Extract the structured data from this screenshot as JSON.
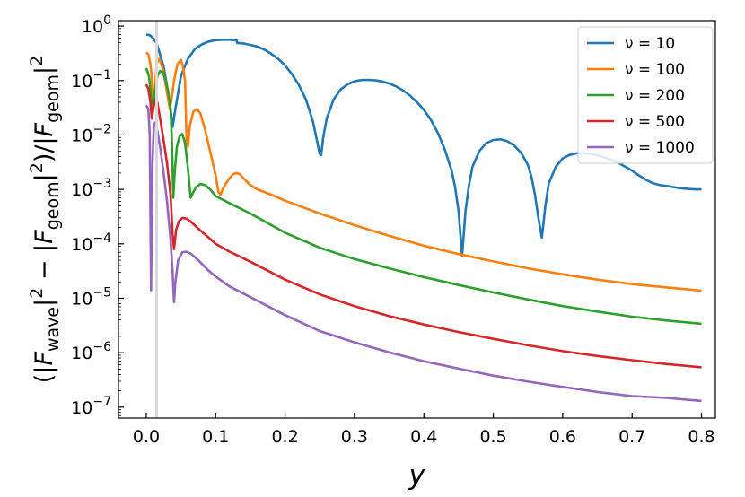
{
  "chart_data": {
    "type": "line",
    "xlabel": "y",
    "ylabel": "(|F_wave|^2 − |F_geom|^2)/|F_geom|^2",
    "xlim": [
      -0.04,
      0.82
    ],
    "ylim_log10": [
      -7.2,
      0.1
    ],
    "yscale": "log",
    "grid": false,
    "legend_position": "top-right",
    "vertical_marker_x": 0.015,
    "x_ticks": [
      "0.0",
      "0.1",
      "0.2",
      "0.3",
      "0.4",
      "0.5",
      "0.6",
      "0.7",
      "0.8"
    ],
    "x_tick_values": [
      0.0,
      0.1,
      0.2,
      0.3,
      0.4,
      0.5,
      0.6,
      0.7,
      0.8
    ],
    "y_ticks": [
      {
        "exp": -7,
        "base": "10",
        "sup": "−7"
      },
      {
        "exp": -6,
        "base": "10",
        "sup": "−6"
      },
      {
        "exp": -5,
        "base": "10",
        "sup": "−5"
      },
      {
        "exp": -4,
        "base": "10",
        "sup": "−4"
      },
      {
        "exp": -3,
        "base": "10",
        "sup": "−3"
      },
      {
        "exp": -2,
        "base": "10",
        "sup": "−2"
      },
      {
        "exp": -1,
        "base": "10",
        "sup": "−1"
      },
      {
        "exp": 0,
        "base": "10",
        "sup": "0"
      }
    ],
    "series": [
      {
        "name": "ν = 10",
        "nu": "10",
        "color": "#1f77b4",
        "points": [
          [
            0.0,
            0.7
          ],
          [
            0.005,
            0.68
          ],
          [
            0.01,
            0.6
          ],
          [
            0.015,
            0.48
          ],
          [
            0.02,
            0.3
          ],
          [
            0.025,
            0.18
          ],
          [
            0.03,
            0.08
          ],
          [
            0.035,
            0.03
          ],
          [
            0.038,
            0.014
          ],
          [
            0.042,
            0.03
          ],
          [
            0.05,
            0.12
          ],
          [
            0.06,
            0.25
          ],
          [
            0.07,
            0.38
          ],
          [
            0.08,
            0.46
          ],
          [
            0.09,
            0.52
          ],
          [
            0.1,
            0.55
          ],
          [
            0.11,
            0.56
          ],
          [
            0.12,
            0.56
          ],
          [
            0.13,
            0.55
          ],
          [
            0.131,
            0.49
          ],
          [
            0.14,
            0.48
          ],
          [
            0.15,
            0.45
          ],
          [
            0.16,
            0.42
          ],
          [
            0.17,
            0.37
          ],
          [
            0.18,
            0.31
          ],
          [
            0.19,
            0.25
          ],
          [
            0.2,
            0.19
          ],
          [
            0.21,
            0.13
          ],
          [
            0.22,
            0.083
          ],
          [
            0.23,
            0.045
          ],
          [
            0.24,
            0.018
          ],
          [
            0.245,
            0.009
          ],
          [
            0.25,
            0.0045
          ],
          [
            0.252,
            0.0043
          ],
          [
            0.255,
            0.009
          ],
          [
            0.26,
            0.02
          ],
          [
            0.27,
            0.045
          ],
          [
            0.28,
            0.068
          ],
          [
            0.29,
            0.085
          ],
          [
            0.3,
            0.097
          ],
          [
            0.31,
            0.102
          ],
          [
            0.32,
            0.103
          ],
          [
            0.33,
            0.101
          ],
          [
            0.34,
            0.096
          ],
          [
            0.35,
            0.088
          ],
          [
            0.36,
            0.078
          ],
          [
            0.37,
            0.066
          ],
          [
            0.38,
            0.053
          ],
          [
            0.39,
            0.04
          ],
          [
            0.4,
            0.029
          ],
          [
            0.41,
            0.019
          ],
          [
            0.42,
            0.011
          ],
          [
            0.43,
            0.0055
          ],
          [
            0.44,
            0.0022
          ],
          [
            0.445,
            0.0011
          ],
          [
            0.45,
            0.0004
          ],
          [
            0.455,
            6e-05
          ],
          [
            0.46,
            0.0004
          ],
          [
            0.465,
            0.0012
          ],
          [
            0.47,
            0.0026
          ],
          [
            0.48,
            0.0051
          ],
          [
            0.49,
            0.0071
          ],
          [
            0.5,
            0.0081
          ],
          [
            0.51,
            0.0083
          ],
          [
            0.52,
            0.0077
          ],
          [
            0.53,
            0.0064
          ],
          [
            0.54,
            0.0047
          ],
          [
            0.55,
            0.0028
          ],
          [
            0.555,
            0.0017
          ],
          [
            0.56,
            0.0008
          ],
          [
            0.565,
            0.0003
          ],
          [
            0.57,
            0.00013
          ],
          [
            0.575,
            0.0005
          ],
          [
            0.58,
            0.0013
          ],
          [
            0.59,
            0.0026
          ],
          [
            0.6,
            0.0037
          ],
          [
            0.61,
            0.0043
          ],
          [
            0.62,
            0.0046
          ],
          [
            0.63,
            0.0046
          ],
          [
            0.64,
            0.0045
          ],
          [
            0.65,
            0.0042
          ],
          [
            0.66,
            0.0039
          ],
          [
            0.67,
            0.0035
          ],
          [
            0.68,
            0.0031
          ],
          [
            0.69,
            0.0026
          ],
          [
            0.7,
            0.0022
          ],
          [
            0.71,
            0.0018
          ],
          [
            0.72,
            0.0015
          ],
          [
            0.73,
            0.0013
          ],
          [
            0.74,
            0.0012
          ],
          [
            0.75,
            0.00115
          ],
          [
            0.76,
            0.0011
          ],
          [
            0.77,
            0.00105
          ],
          [
            0.78,
            0.00102
          ],
          [
            0.79,
            0.001
          ],
          [
            0.8,
            0.001
          ]
        ]
      },
      {
        "name": "ν = 100",
        "nu": "100",
        "color": "#ff7f0e",
        "points": [
          [
            0.0,
            0.33
          ],
          [
            0.003,
            0.3
          ],
          [
            0.006,
            0.2
          ],
          [
            0.008,
            0.12
          ],
          [
            0.01,
            0.03
          ],
          [
            0.012,
            0.06
          ],
          [
            0.015,
            0.2
          ],
          [
            0.018,
            0.25
          ],
          [
            0.022,
            0.2
          ],
          [
            0.026,
            0.12
          ],
          [
            0.03,
            0.06
          ],
          [
            0.034,
            0.03
          ],
          [
            0.037,
            0.05
          ],
          [
            0.04,
            0.1
          ],
          [
            0.045,
            0.2
          ],
          [
            0.05,
            0.24
          ],
          [
            0.053,
            0.18
          ],
          [
            0.056,
            0.1
          ],
          [
            0.058,
            0.008
          ],
          [
            0.06,
            0.006
          ],
          [
            0.063,
            0.015
          ],
          [
            0.068,
            0.027
          ],
          [
            0.073,
            0.03
          ],
          [
            0.078,
            0.025
          ],
          [
            0.085,
            0.012
          ],
          [
            0.092,
            0.005
          ],
          [
            0.1,
            0.0018
          ],
          [
            0.104,
            0.0009
          ],
          [
            0.107,
            0.0008
          ],
          [
            0.11,
            0.001
          ],
          [
            0.115,
            0.0013
          ],
          [
            0.12,
            0.0016
          ],
          [
            0.125,
            0.0019
          ],
          [
            0.13,
            0.002
          ],
          [
            0.135,
            0.0019
          ],
          [
            0.14,
            0.0016
          ],
          [
            0.15,
            0.0012
          ],
          [
            0.16,
            0.001
          ],
          [
            0.18,
            0.0008
          ],
          [
            0.2,
            0.00062
          ],
          [
            0.25,
            0.00036
          ],
          [
            0.3,
            0.00022
          ],
          [
            0.35,
            0.00014
          ],
          [
            0.4,
            9.25e-05
          ],
          [
            0.45,
            6.5e-05
          ],
          [
            0.5,
            4.75e-05
          ],
          [
            0.55,
            3.55e-05
          ],
          [
            0.6,
            2.75e-05
          ],
          [
            0.65,
            2.2e-05
          ],
          [
            0.7,
            1.82e-05
          ],
          [
            0.75,
            1.58e-05
          ],
          [
            0.8,
            1.38e-05
          ]
        ]
      },
      {
        "name": "ν = 200",
        "nu": "200",
        "color": "#2ca02c",
        "points": [
          [
            0.0,
            0.17
          ],
          [
            0.004,
            0.12
          ],
          [
            0.007,
            0.05
          ],
          [
            0.009,
            0.03
          ],
          [
            0.012,
            0.06
          ],
          [
            0.016,
            0.12
          ],
          [
            0.02,
            0.15
          ],
          [
            0.024,
            0.14
          ],
          [
            0.028,
            0.1
          ],
          [
            0.032,
            0.06
          ],
          [
            0.035,
            0.03
          ],
          [
            0.037,
            0.008
          ],
          [
            0.039,
            0.0007
          ],
          [
            0.041,
            0.002
          ],
          [
            0.044,
            0.006
          ],
          [
            0.048,
            0.0095
          ],
          [
            0.052,
            0.0105
          ],
          [
            0.056,
            0.007
          ],
          [
            0.06,
            0.0025
          ],
          [
            0.064,
            0.0007
          ],
          [
            0.068,
            0.0009
          ],
          [
            0.072,
            0.0011
          ],
          [
            0.078,
            0.00125
          ],
          [
            0.085,
            0.0012
          ],
          [
            0.092,
            0.001
          ],
          [
            0.1,
            0.00075
          ],
          [
            0.12,
            0.00056
          ],
          [
            0.15,
            0.00036
          ],
          [
            0.2,
            0.00016
          ],
          [
            0.25,
            8.5e-05
          ],
          [
            0.3,
            5.25e-05
          ],
          [
            0.35,
            3.55e-05
          ],
          [
            0.4,
            2.45e-05
          ],
          [
            0.45,
            1.75e-05
          ],
          [
            0.5,
            1.28e-05
          ],
          [
            0.55,
            9.5e-06
          ],
          [
            0.6,
            7.2e-06
          ],
          [
            0.65,
            5.7e-06
          ],
          [
            0.7,
            4.6e-06
          ],
          [
            0.75,
            3.9e-06
          ],
          [
            0.8,
            3.4e-06
          ]
        ]
      },
      {
        "name": "ν = 500",
        "nu": "500",
        "color": "#d62728",
        "points": [
          [
            0.0,
            0.085
          ],
          [
            0.003,
            0.07
          ],
          [
            0.006,
            0.04
          ],
          [
            0.008,
            0.02
          ],
          [
            0.01,
            0.03
          ],
          [
            0.013,
            0.045
          ],
          [
            0.016,
            0.04
          ],
          [
            0.02,
            0.02
          ],
          [
            0.025,
            0.008
          ],
          [
            0.03,
            0.003
          ],
          [
            0.035,
            0.0008
          ],
          [
            0.038,
            0.00015
          ],
          [
            0.04,
            8e-05
          ],
          [
            0.043,
            0.00018
          ],
          [
            0.047,
            0.00026
          ],
          [
            0.052,
            0.0003
          ],
          [
            0.058,
            0.00029
          ],
          [
            0.065,
            0.00025
          ],
          [
            0.075,
            0.00019
          ],
          [
            0.09,
            0.00013
          ],
          [
            0.1,
            0.0001
          ],
          [
            0.12,
            7.2e-05
          ],
          [
            0.15,
            4.7e-05
          ],
          [
            0.2,
            2.2e-05
          ],
          [
            0.25,
            1.18e-05
          ],
          [
            0.3,
            7.2e-06
          ],
          [
            0.35,
            4.7e-06
          ],
          [
            0.4,
            3.3e-06
          ],
          [
            0.45,
            2.4e-06
          ],
          [
            0.5,
            1.8e-06
          ],
          [
            0.55,
            1.37e-06
          ],
          [
            0.6,
            1.07e-06
          ],
          [
            0.65,
            8.7e-07
          ],
          [
            0.7,
            7.3e-07
          ],
          [
            0.75,
            6.2e-07
          ],
          [
            0.8,
            5.4e-07
          ]
        ]
      },
      {
        "name": "ν = 1000",
        "nu": "1000",
        "color": "#9467bd",
        "points": [
          [
            0.0,
            0.035
          ],
          [
            0.003,
            0.03
          ],
          [
            0.005,
            0.01
          ],
          [
            0.007,
            1.4e-05
          ],
          [
            0.009,
            0.003
          ],
          [
            0.011,
            0.015
          ],
          [
            0.013,
            0.017
          ],
          [
            0.016,
            0.012
          ],
          [
            0.02,
            0.006
          ],
          [
            0.025,
            0.002
          ],
          [
            0.03,
            0.0006
          ],
          [
            0.035,
            0.00012
          ],
          [
            0.038,
            3e-05
          ],
          [
            0.04,
            8.5e-06
          ],
          [
            0.042,
            2e-05
          ],
          [
            0.046,
            5e-05
          ],
          [
            0.052,
            7e-05
          ],
          [
            0.058,
            7.2e-05
          ],
          [
            0.065,
            6.5e-05
          ],
          [
            0.075,
            5e-05
          ],
          [
            0.09,
            3.2e-05
          ],
          [
            0.1,
            2.5e-05
          ],
          [
            0.12,
            1.65e-05
          ],
          [
            0.15,
            1.05e-05
          ],
          [
            0.2,
            4.9e-06
          ],
          [
            0.25,
            2.5e-06
          ],
          [
            0.3,
            1.55e-06
          ],
          [
            0.35,
            1.02e-06
          ],
          [
            0.4,
            7e-07
          ],
          [
            0.45,
            5.1e-07
          ],
          [
            0.5,
            3.8e-07
          ],
          [
            0.55,
            2.95e-07
          ],
          [
            0.6,
            2.35e-07
          ],
          [
            0.65,
            1.9e-07
          ],
          [
            0.7,
            1.6e-07
          ],
          [
            0.75,
            1.48e-07
          ],
          [
            0.8,
            1.3e-07
          ]
        ]
      }
    ]
  }
}
